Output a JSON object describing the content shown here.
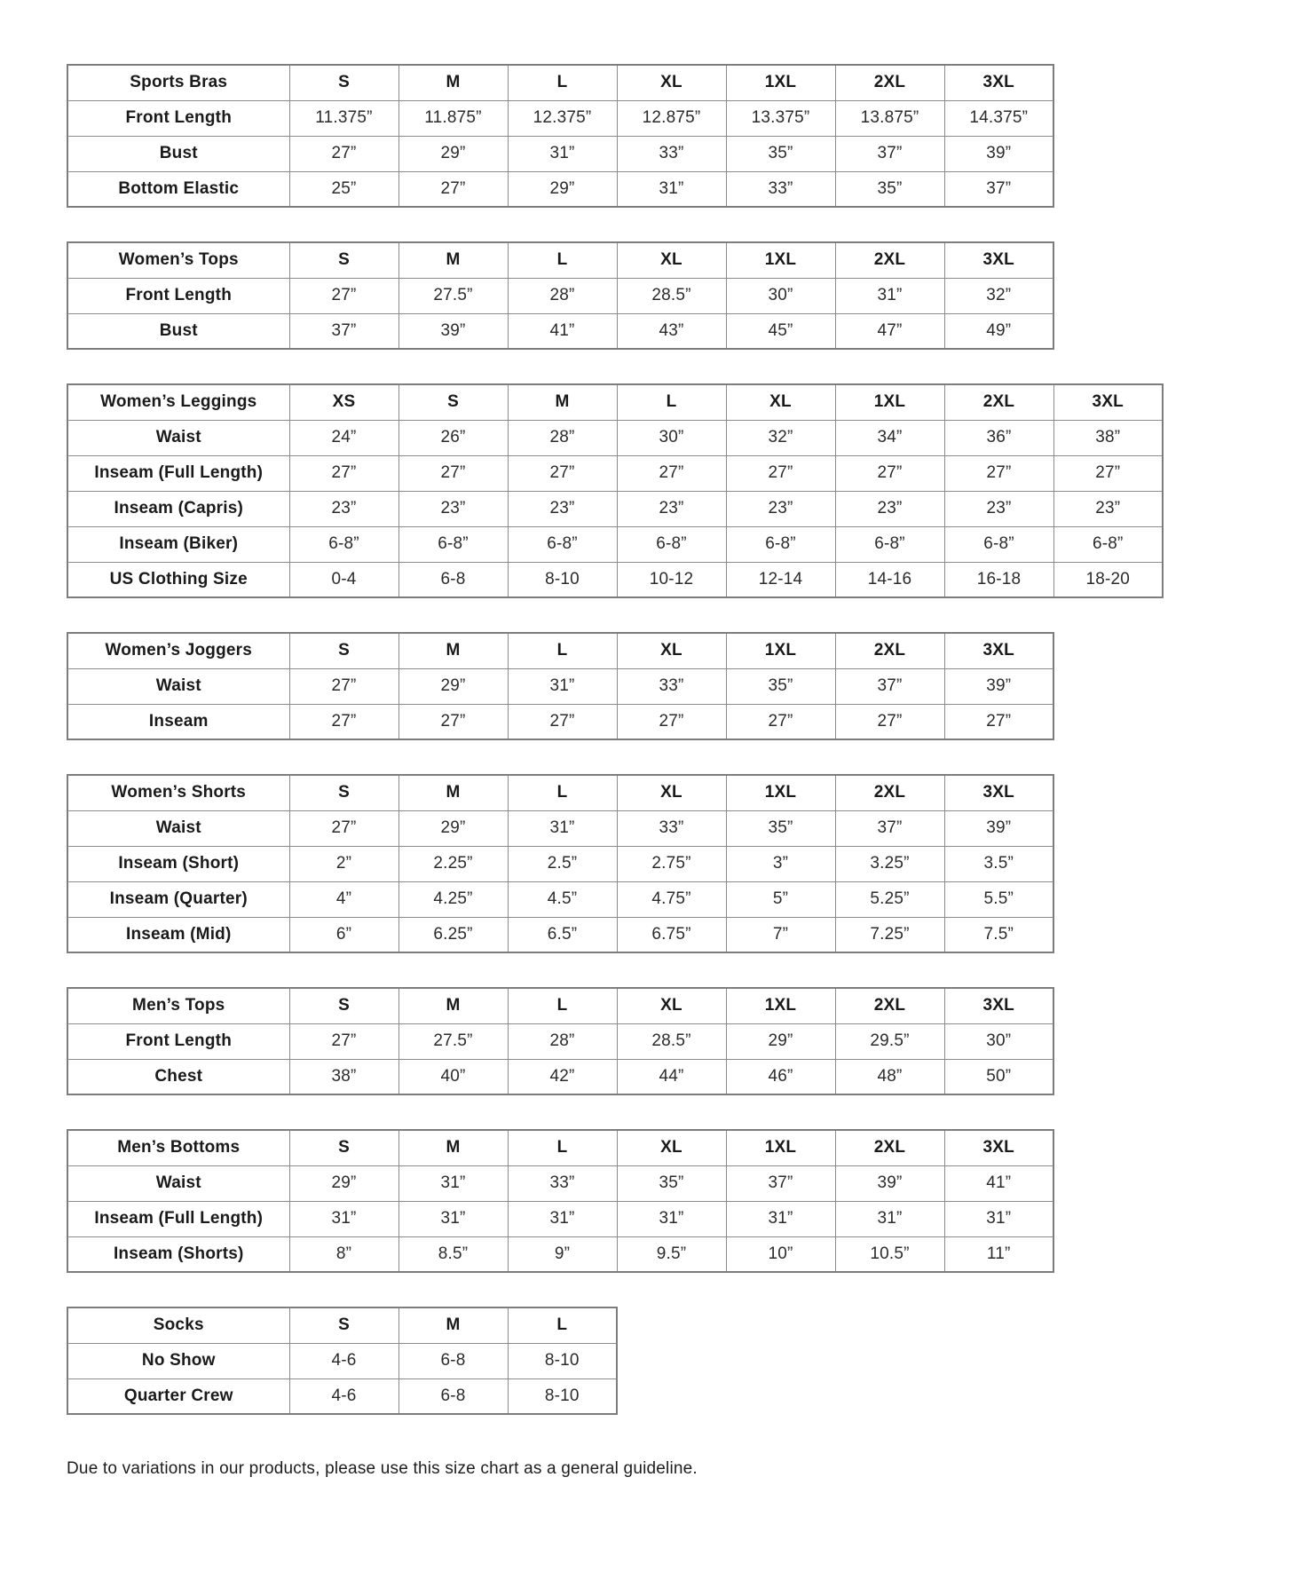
{
  "footer": {
    "note": "Due to variations in our products, please use this size chart as a general guideline."
  },
  "style": {
    "border_color": "#8c8c8c",
    "text_color": "#1d1d1d",
    "background_color": "#ffffff"
  },
  "tables": [
    {
      "name": "Sports Bras",
      "sizes": [
        "S",
        "M",
        "L",
        "XL",
        "1XL",
        "2XL",
        "3XL"
      ],
      "rows": [
        {
          "label": "Front Length",
          "values": [
            "11.375”",
            "11.875”",
            "12.375”",
            "12.875”",
            "13.375”",
            "13.875”",
            "14.375”"
          ]
        },
        {
          "label": "Bust",
          "values": [
            "27”",
            "29”",
            "31”",
            "33”",
            "35”",
            "37”",
            "39”"
          ]
        },
        {
          "label": "Bottom Elastic",
          "values": [
            "25”",
            "27”",
            "29”",
            "31”",
            "33”",
            "35”",
            "37”"
          ]
        }
      ]
    },
    {
      "name": "Women’s Tops",
      "sizes": [
        "S",
        "M",
        "L",
        "XL",
        "1XL",
        "2XL",
        "3XL"
      ],
      "rows": [
        {
          "label": "Front Length",
          "values": [
            "27”",
            "27.5”",
            "28”",
            "28.5”",
            "30”",
            "31”",
            "32”"
          ]
        },
        {
          "label": "Bust",
          "values": [
            "37”",
            "39”",
            "41”",
            "43”",
            "45”",
            "47”",
            "49”"
          ]
        }
      ]
    },
    {
      "name": "Women’s Leggings",
      "sizes": [
        "XS",
        "S",
        "M",
        "L",
        "XL",
        "1XL",
        "2XL",
        "3XL"
      ],
      "rows": [
        {
          "label": "Waist",
          "values": [
            "24”",
            "26”",
            "28”",
            "30”",
            "32”",
            "34”",
            "36”",
            "38”"
          ]
        },
        {
          "label": "Inseam (Full Length)",
          "values": [
            "27”",
            "27”",
            "27”",
            "27”",
            "27”",
            "27”",
            "27”",
            "27”"
          ]
        },
        {
          "label": "Inseam (Capris)",
          "values": [
            "23”",
            "23”",
            "23”",
            "23”",
            "23”",
            "23”",
            "23”",
            "23”"
          ]
        },
        {
          "label": "Inseam (Biker)",
          "values": [
            "6-8”",
            "6-8”",
            "6-8”",
            "6-8”",
            "6-8”",
            "6-8”",
            "6-8”",
            "6-8”"
          ]
        },
        {
          "label": "US Clothing Size",
          "values": [
            "0-4",
            "6-8",
            "8-10",
            "10-12",
            "12-14",
            "14-16",
            "16-18",
            "18-20"
          ]
        }
      ]
    },
    {
      "name": "Women’s Joggers",
      "sizes": [
        "S",
        "M",
        "L",
        "XL",
        "1XL",
        "2XL",
        "3XL"
      ],
      "rows": [
        {
          "label": "Waist",
          "values": [
            "27”",
            "29”",
            "31”",
            "33”",
            "35”",
            "37”",
            "39”"
          ]
        },
        {
          "label": "Inseam",
          "values": [
            "27”",
            "27”",
            "27”",
            "27”",
            "27”",
            "27”",
            "27”"
          ]
        }
      ]
    },
    {
      "name": "Women’s Shorts",
      "sizes": [
        "S",
        "M",
        "L",
        "XL",
        "1XL",
        "2XL",
        "3XL"
      ],
      "rows": [
        {
          "label": "Waist",
          "values": [
            "27”",
            "29”",
            "31”",
            "33”",
            "35”",
            "37”",
            "39”"
          ]
        },
        {
          "label": "Inseam (Short)",
          "values": [
            "2”",
            "2.25”",
            "2.5”",
            "2.75”",
            "3”",
            "3.25”",
            "3.5”"
          ]
        },
        {
          "label": "Inseam (Quarter)",
          "values": [
            "4”",
            "4.25”",
            "4.5”",
            "4.75”",
            "5”",
            "5.25”",
            "5.5”"
          ]
        },
        {
          "label": "Inseam (Mid)",
          "values": [
            "6”",
            "6.25”",
            "6.5”",
            "6.75”",
            "7”",
            "7.25”",
            "7.5”"
          ]
        }
      ]
    },
    {
      "name": "Men’s Tops",
      "sizes": [
        "S",
        "M",
        "L",
        "XL",
        "1XL",
        "2XL",
        "3XL"
      ],
      "rows": [
        {
          "label": "Front Length",
          "values": [
            "27”",
            "27.5”",
            "28”",
            "28.5”",
            "29”",
            "29.5”",
            "30”"
          ]
        },
        {
          "label": "Chest",
          "values": [
            "38”",
            "40”",
            "42”",
            "44”",
            "46”",
            "48”",
            "50”"
          ]
        }
      ]
    },
    {
      "name": "Men’s Bottoms",
      "sizes": [
        "S",
        "M",
        "L",
        "XL",
        "1XL",
        "2XL",
        "3XL"
      ],
      "rows": [
        {
          "label": "Waist",
          "values": [
            "29”",
            "31”",
            "33”",
            "35”",
            "37”",
            "39”",
            "41”"
          ]
        },
        {
          "label": "Inseam (Full Length)",
          "values": [
            "31”",
            "31”",
            "31”",
            "31”",
            "31”",
            "31”",
            "31”"
          ]
        },
        {
          "label": "Inseam (Shorts)",
          "values": [
            "8”",
            "8.5”",
            "9”",
            "9.5”",
            "10”",
            "10.5”",
            "11”"
          ]
        }
      ]
    },
    {
      "name": "Socks",
      "sizes": [
        "S",
        "M",
        "L"
      ],
      "rows": [
        {
          "label": "No Show",
          "values": [
            "4-6",
            "6-8",
            "8-10"
          ]
        },
        {
          "label": "Quarter Crew",
          "values": [
            "4-6",
            "6-8",
            "8-10"
          ]
        }
      ]
    }
  ]
}
